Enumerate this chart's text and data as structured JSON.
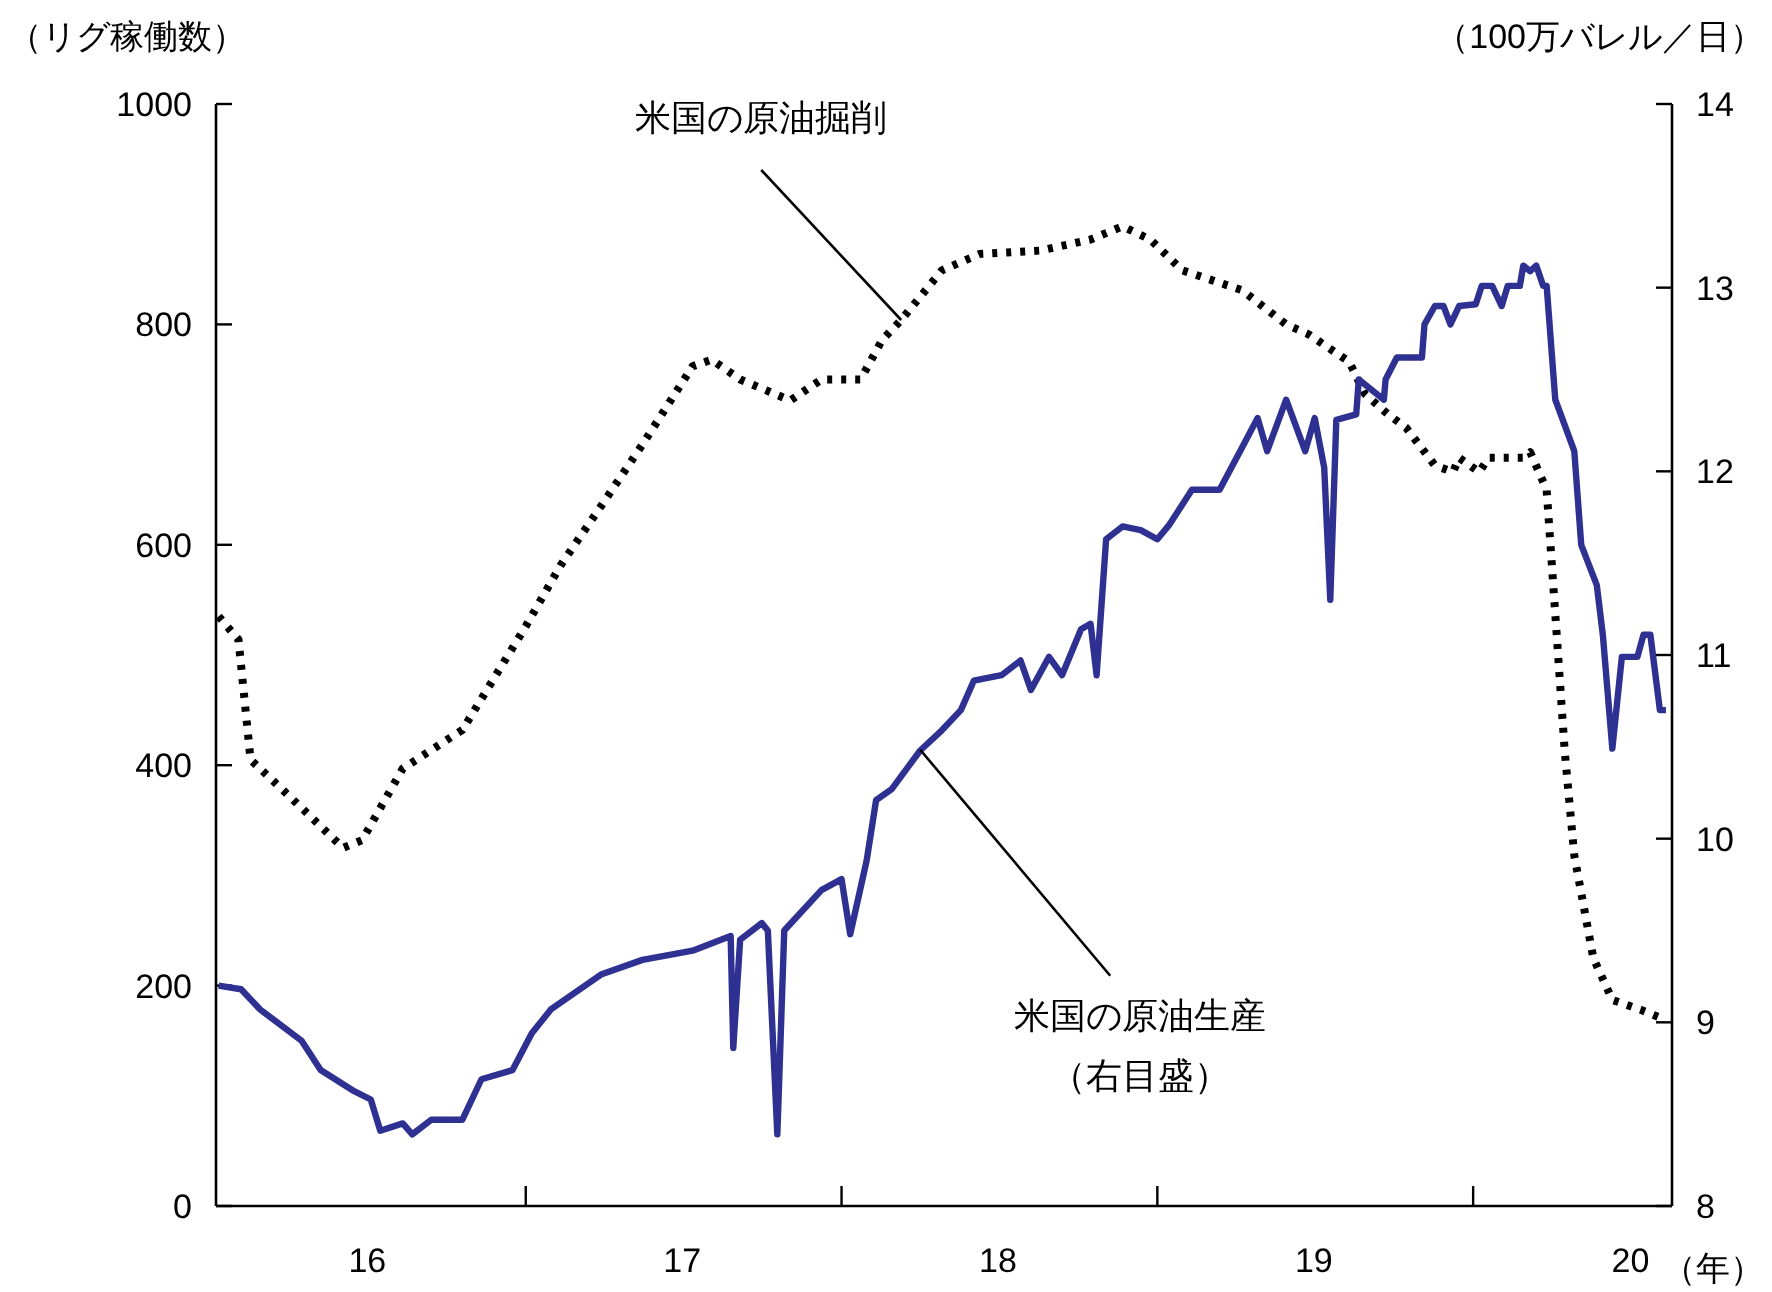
{
  "chart_data": {
    "type": "line",
    "ylabel": "（リグ稼働数）",
    "y2label": "（100万バレル／日）",
    "xlabel": "（年）",
    "xlim": [
      "2016-01-08",
      "2020-08-18"
    ],
    "xticks": [
      {
        "value": "2016-07-01",
        "label": "16"
      },
      {
        "value": "2017-01-01",
        "label": null
      },
      {
        "value": "2017-07-01",
        "label": "17"
      },
      {
        "value": "2018-01-01",
        "label": null
      },
      {
        "value": "2018-07-01",
        "label": "18"
      },
      {
        "value": "2019-01-01",
        "label": null
      },
      {
        "value": "2019-07-01",
        "label": "19"
      },
      {
        "value": "2020-01-01",
        "label": null
      },
      {
        "value": "2020-07-01",
        "label": "20"
      }
    ],
    "ylim": [
      0,
      1000
    ],
    "yticks": [
      0,
      200,
      400,
      600,
      800,
      1000
    ],
    "y2lim": [
      8,
      14
    ],
    "y2ticks": [
      8,
      9,
      10,
      11,
      12,
      13,
      14
    ],
    "series": [
      {
        "color": "#000000",
        "line_style": "dotted",
        "x": [
          "2016-01-11",
          "2016-02-03",
          "2016-02-17",
          "2016-03-26",
          "2016-06-03",
          "2016-06-25",
          "2016-08-11",
          "2016-10-19",
          "2017-01-01",
          "2017-02-10",
          "2017-03-29",
          "2017-05-16",
          "2017-07-13",
          "2017-08-04",
          "2017-09-06",
          "2017-11-03",
          "2017-12-09",
          "2018-01-23",
          "2018-02-17",
          "2018-03-11",
          "2018-04-27",
          "2018-06-10",
          "2018-08-19",
          "2018-10-16",
          "2018-11-22",
          "2018-12-24",
          "2019-01-30",
          "2019-04-09",
          "2019-05-30",
          "2019-06-25",
          "2019-08-11",
          "2019-08-29",
          "2019-09-24",
          "2019-10-16",
          "2019-11-18",
          "2019-12-09",
          "2019-12-16",
          "2020-01-08",
          "2020-01-19",
          "2020-02-28",
          "2020-03-07",
          "2020-03-26",
          "2020-04-05",
          "2020-04-16",
          "2020-04-27",
          "2020-05-19",
          "2020-06-10",
          "2020-07-13",
          "2020-08-04"
        ],
        "values": [
          535,
          514,
          405,
          377,
          325,
          332,
          397,
          432,
          526,
          581,
          635,
          691,
          762,
          768,
          750,
          731,
          750,
          750,
          786,
          804,
          849,
          864,
          867,
          877,
          889,
          877,
          849,
          831,
          800,
          791,
          766,
          737,
          719,
          706,
          672,
          666,
          679,
          666,
          679,
          679,
          684,
          650,
          537,
          412,
          318,
          225,
          187,
          178,
          171
        ]
      },
      {
        "color": "#2e3192",
        "line_style": "solid",
        "axis": "y2",
        "x": [
          "2016-01-11",
          "2016-02-06",
          "2016-02-28",
          "2016-04-16",
          "2016-05-08",
          "2016-06-14",
          "2016-07-05",
          "2016-07-16",
          "2016-08-11",
          "2016-08-22",
          "2016-09-13",
          "2016-10-19",
          "2016-11-10",
          "2016-12-16",
          "2017-01-08",
          "2017-01-30",
          "2017-03-29",
          "2017-05-16",
          "2017-07-13",
          "2017-08-26",
          "2017-08-29",
          "2017-09-06",
          "2017-10-01",
          "2017-10-08",
          "2017-10-19",
          "2017-10-27",
          "2017-12-09",
          "2018-01-01",
          "2018-01-11",
          "2018-01-30",
          "2018-02-10",
          "2018-02-28",
          "2018-04-02",
          "2018-04-27",
          "2018-05-19",
          "2018-06-03",
          "2018-07-05",
          "2018-07-27",
          "2018-08-08",
          "2018-08-29",
          "2018-09-13",
          "2018-10-05",
          "2018-10-16",
          "2018-10-23",
          "2018-11-03",
          "2018-11-22",
          "2018-12-13",
          "2019-01-01",
          "2019-01-15",
          "2019-02-10",
          "2019-03-14",
          "2019-04-09",
          "2019-04-27",
          "2019-05-08",
          "2019-05-30",
          "2019-06-21",
          "2019-07-02",
          "2019-07-13",
          "2019-07-20",
          "2019-07-27",
          "2019-08-19",
          "2019-08-22",
          "2019-09-20",
          "2019-09-22",
          "2019-10-05",
          "2019-11-03",
          "2019-11-06",
          "2019-11-18",
          "2019-11-28",
          "2019-12-06",
          "2019-12-16",
          "2020-01-04",
          "2020-01-11",
          "2020-01-23",
          "2020-02-03",
          "2020-02-10",
          "2020-02-24",
          "2020-02-28",
          "2020-03-07",
          "2020-03-14",
          "2020-03-22",
          "2020-03-26",
          "2020-04-05",
          "2020-04-27",
          "2020-05-05",
          "2020-05-23",
          "2020-05-30",
          "2020-06-10",
          "2020-06-21",
          "2020-07-09",
          "2020-07-16",
          "2020-07-24",
          "2020-08-04",
          "2020-08-11"
        ],
        "values": [
          9.2,
          9.18,
          9.07,
          8.9,
          8.74,
          8.63,
          8.58,
          8.41,
          8.45,
          8.39,
          8.47,
          8.47,
          8.69,
          8.74,
          8.94,
          9.07,
          9.26,
          9.34,
          9.39,
          9.47,
          8.86,
          9.45,
          9.54,
          9.5,
          8.39,
          9.5,
          9.72,
          9.78,
          9.48,
          9.88,
          10.21,
          10.27,
          10.48,
          10.59,
          10.7,
          10.86,
          10.89,
          10.97,
          10.81,
          10.99,
          10.89,
          11.14,
          11.17,
          10.89,
          11.63,
          11.7,
          11.68,
          11.63,
          11.71,
          11.9,
          11.9,
          12.13,
          12.29,
          12.11,
          12.39,
          12.11,
          12.29,
          12.02,
          11.3,
          12.28,
          12.31,
          12.5,
          12.39,
          12.5,
          12.62,
          12.62,
          12.8,
          12.9,
          12.9,
          12.8,
          12.9,
          12.91,
          13.01,
          13.01,
          12.9,
          13.01,
          13.01,
          13.12,
          13.09,
          13.12,
          13.01,
          13.01,
          12.39,
          12.11,
          11.6,
          11.38,
          11.11,
          10.49,
          10.99,
          10.99,
          11.11,
          11.11,
          10.7,
          10.7
        ]
      }
    ],
    "annotations": [
      {
        "text": "米国の原油掘削",
        "x": "2018-03-11",
        "y": 804
      },
      {
        "text": "米国の原油生産",
        "x": "2018-04-02",
        "y": 414
      },
      "（右目盛）"
    ]
  }
}
